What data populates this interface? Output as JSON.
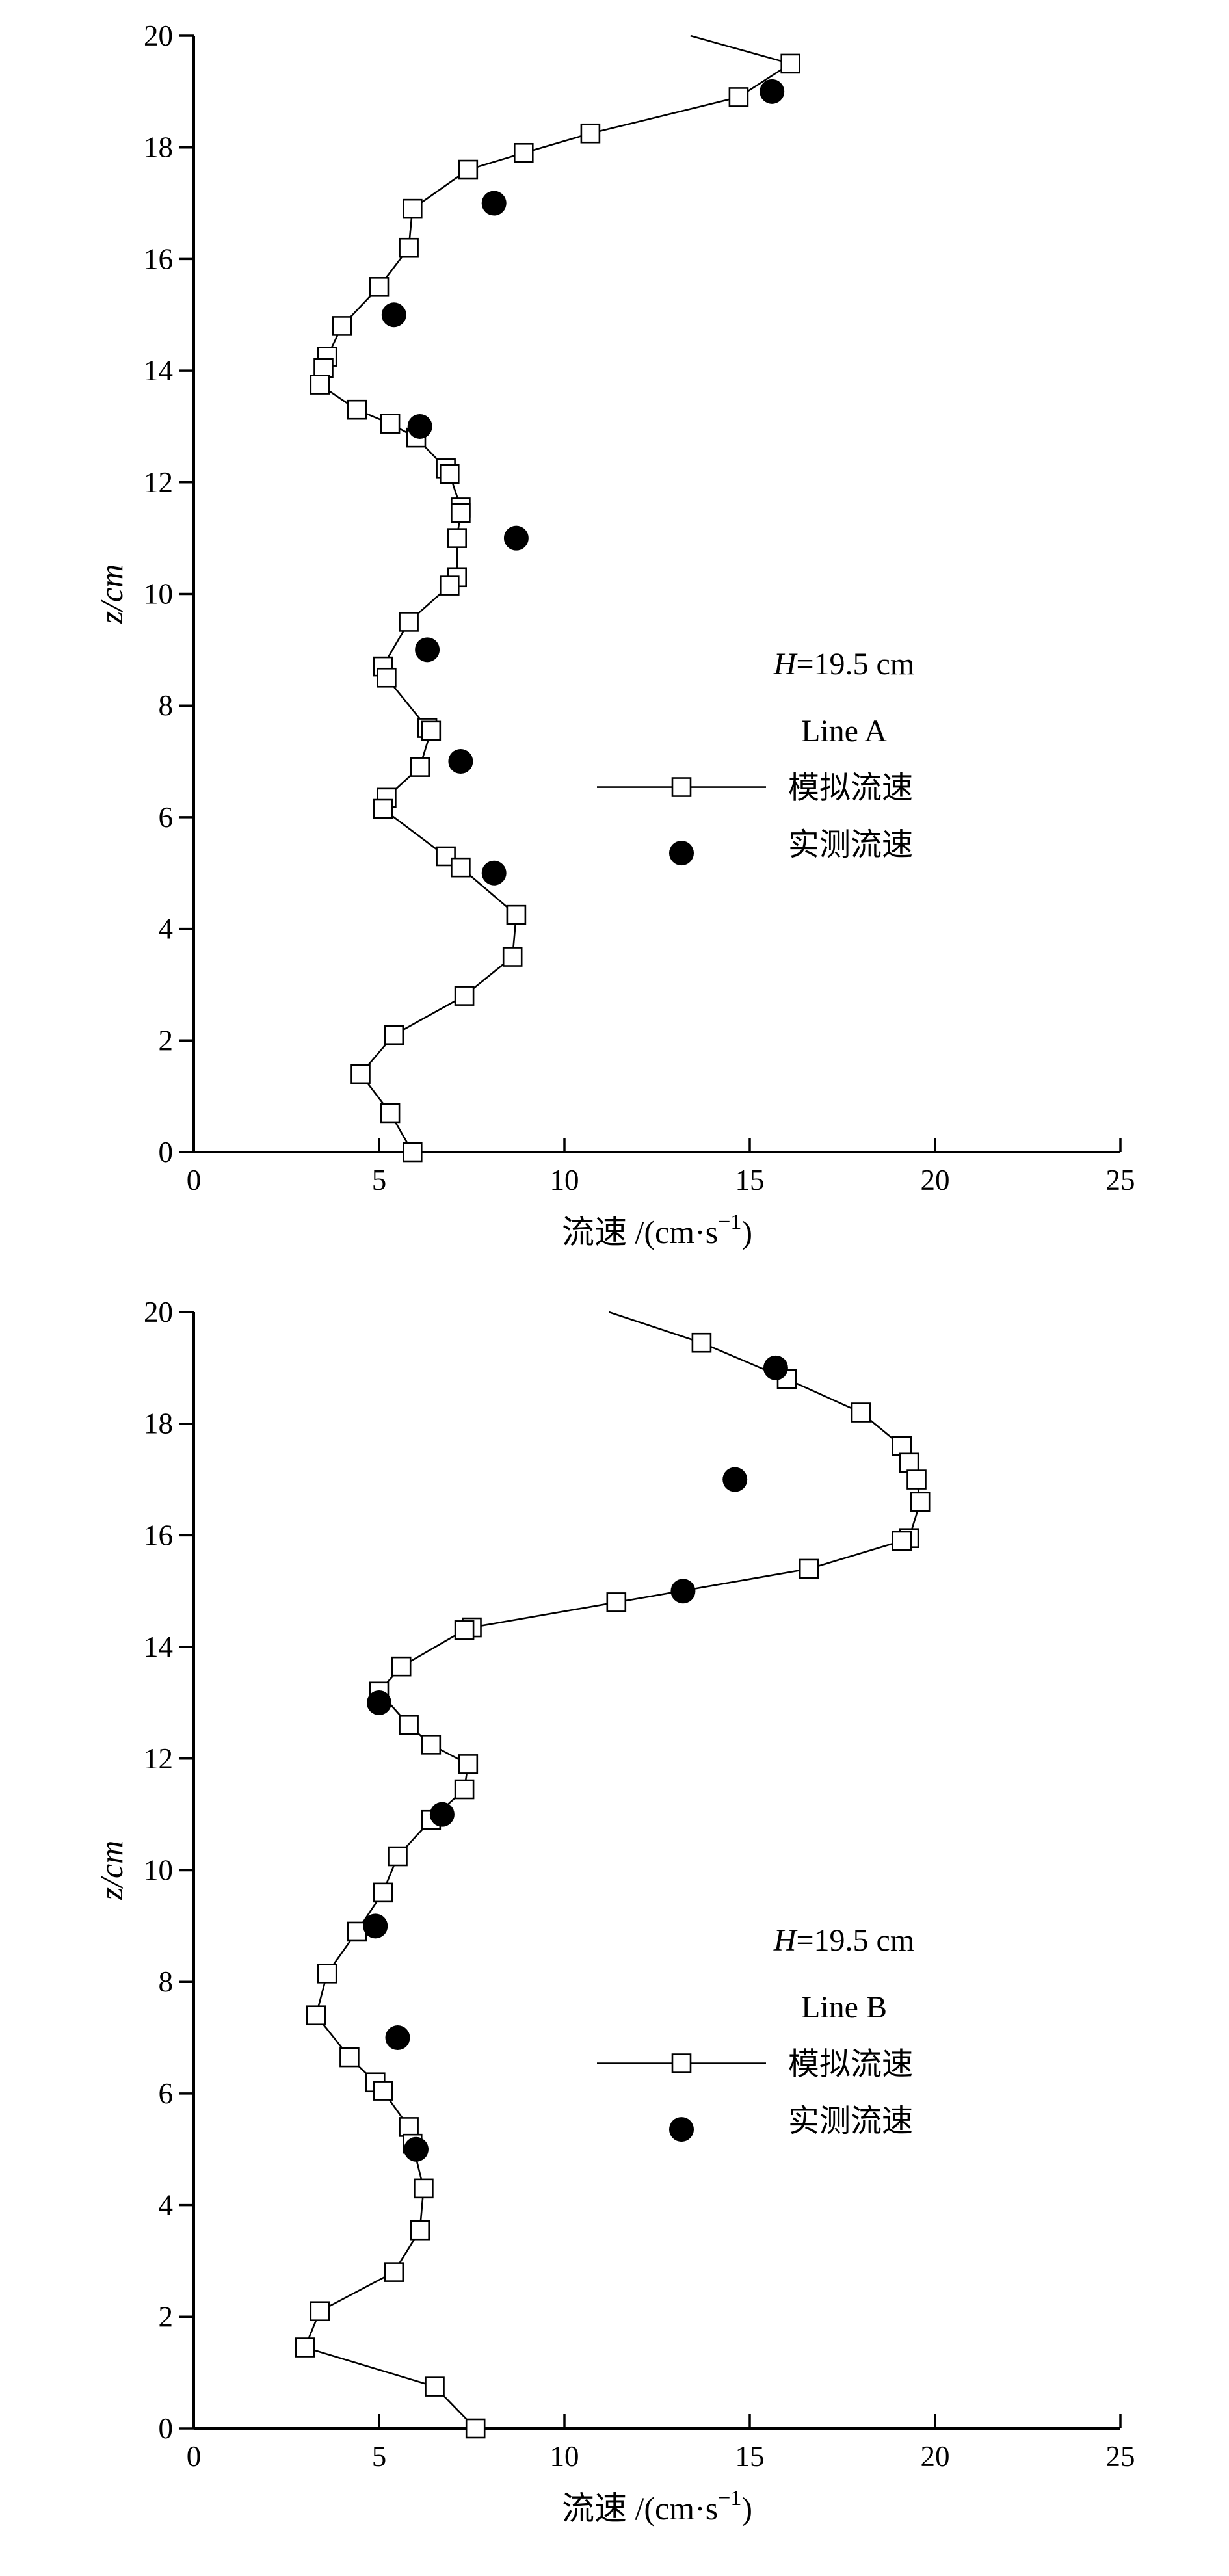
{
  "charts": [
    {
      "type": "line",
      "ylabel": "z/cm",
      "xlabel": "流速 /(cm·s",
      "xlabel_sup": "−1",
      "xlabel_close": ")",
      "xlim": [
        0,
        25
      ],
      "ylim": [
        0,
        20
      ],
      "xticks": [
        0,
        5,
        10,
        15,
        20,
        25
      ],
      "yticks": [
        0,
        2,
        4,
        6,
        8,
        10,
        12,
        14,
        16,
        18,
        20
      ],
      "grid": false,
      "legend_position": "right-middle",
      "annotation_var": "H",
      "annotation_value": "=19.5 cm",
      "annotation_line": "Line A",
      "series": [
        {
          "name": "模拟流速",
          "marker": "open-square",
          "line_start": {
            "x": 13.4,
            "y": 20.0
          },
          "points": [
            {
              "x": 16.1,
              "y": 19.5
            },
            {
              "x": 14.7,
              "y": 18.9
            },
            {
              "x": 10.7,
              "y": 18.25
            },
            {
              "x": 8.9,
              "y": 17.9
            },
            {
              "x": 7.4,
              "y": 17.6
            },
            {
              "x": 5.9,
              "y": 16.9
            },
            {
              "x": 5.8,
              "y": 16.2
            },
            {
              "x": 5.0,
              "y": 15.5
            },
            {
              "x": 4.0,
              "y": 14.8
            },
            {
              "x": 3.6,
              "y": 14.25
            },
            {
              "x": 3.5,
              "y": 14.05
            },
            {
              "x": 3.4,
              "y": 13.75
            },
            {
              "x": 4.4,
              "y": 13.3
            },
            {
              "x": 5.3,
              "y": 13.05
            },
            {
              "x": 6.0,
              "y": 12.8
            },
            {
              "x": 6.8,
              "y": 12.25
            },
            {
              "x": 6.9,
              "y": 12.15
            },
            {
              "x": 7.2,
              "y": 11.55
            },
            {
              "x": 7.2,
              "y": 11.45
            },
            {
              "x": 7.1,
              "y": 11.0
            },
            {
              "x": 7.1,
              "y": 10.3
            },
            {
              "x": 6.9,
              "y": 10.15
            },
            {
              "x": 5.8,
              "y": 9.5
            },
            {
              "x": 5.1,
              "y": 8.7
            },
            {
              "x": 5.2,
              "y": 8.5
            },
            {
              "x": 6.3,
              "y": 7.6
            },
            {
              "x": 6.4,
              "y": 7.55
            },
            {
              "x": 6.1,
              "y": 6.9
            },
            {
              "x": 5.2,
              "y": 6.35
            },
            {
              "x": 5.1,
              "y": 6.15
            },
            {
              "x": 6.8,
              "y": 5.3
            },
            {
              "x": 7.2,
              "y": 5.1
            },
            {
              "x": 8.7,
              "y": 4.25
            },
            {
              "x": 8.6,
              "y": 3.5
            },
            {
              "x": 7.3,
              "y": 2.8
            },
            {
              "x": 5.4,
              "y": 2.1
            },
            {
              "x": 4.5,
              "y": 1.4
            },
            {
              "x": 5.3,
              "y": 0.7
            },
            {
              "x": 5.9,
              "y": 0.0
            }
          ]
        },
        {
          "name": "实测流速",
          "marker": "filled-circle",
          "points": [
            {
              "x": 15.6,
              "y": 19.0
            },
            {
              "x": 8.1,
              "y": 17.0
            },
            {
              "x": 5.4,
              "y": 15.0
            },
            {
              "x": 6.1,
              "y": 13.0
            },
            {
              "x": 8.7,
              "y": 11.0
            },
            {
              "x": 6.3,
              "y": 9.0
            },
            {
              "x": 7.2,
              "y": 7.0
            },
            {
              "x": 8.1,
              "y": 5.0
            }
          ]
        }
      ]
    },
    {
      "type": "line",
      "ylabel": "z/cm",
      "xlabel": "流速 /(cm·s",
      "xlabel_sup": "−1",
      "xlabel_close": ")",
      "xlim": [
        0,
        25
      ],
      "ylim": [
        0,
        20
      ],
      "xticks": [
        0,
        5,
        10,
        15,
        20,
        25
      ],
      "yticks": [
        0,
        2,
        4,
        6,
        8,
        10,
        12,
        14,
        16,
        18,
        20
      ],
      "grid": false,
      "legend_position": "right-middle",
      "annotation_var": "H",
      "annotation_value": "=19.5 cm",
      "annotation_line": "Line B",
      "series": [
        {
          "name": "模拟流速",
          "marker": "open-square",
          "line_start": {
            "x": 11.2,
            "y": 20.0
          },
          "points": [
            {
              "x": 13.7,
              "y": 19.45
            },
            {
              "x": 16.0,
              "y": 18.8
            },
            {
              "x": 18.0,
              "y": 18.2
            },
            {
              "x": 19.1,
              "y": 17.6
            },
            {
              "x": 19.3,
              "y": 17.3
            },
            {
              "x": 19.5,
              "y": 17.0
            },
            {
              "x": 19.6,
              "y": 16.6
            },
            {
              "x": 19.3,
              "y": 15.95
            },
            {
              "x": 19.1,
              "y": 15.9
            },
            {
              "x": 16.6,
              "y": 15.4
            },
            {
              "x": 11.4,
              "y": 14.8
            },
            {
              "x": 7.5,
              "y": 14.35
            },
            {
              "x": 7.3,
              "y": 14.3
            },
            {
              "x": 5.6,
              "y": 13.65
            },
            {
              "x": 5.0,
              "y": 13.2
            },
            {
              "x": 5.8,
              "y": 12.6
            },
            {
              "x": 6.4,
              "y": 12.25
            },
            {
              "x": 7.4,
              "y": 11.9
            },
            {
              "x": 7.3,
              "y": 11.45
            },
            {
              "x": 6.4,
              "y": 10.9
            },
            {
              "x": 5.5,
              "y": 10.25
            },
            {
              "x": 5.1,
              "y": 9.6
            },
            {
              "x": 4.4,
              "y": 8.9
            },
            {
              "x": 3.6,
              "y": 8.15
            },
            {
              "x": 3.3,
              "y": 7.4
            },
            {
              "x": 4.2,
              "y": 6.65
            },
            {
              "x": 4.9,
              "y": 6.2
            },
            {
              "x": 5.1,
              "y": 6.05
            },
            {
              "x": 5.8,
              "y": 5.4
            },
            {
              "x": 5.9,
              "y": 5.1
            },
            {
              "x": 6.2,
              "y": 4.3
            },
            {
              "x": 6.1,
              "y": 3.55
            },
            {
              "x": 5.4,
              "y": 2.8
            },
            {
              "x": 3.4,
              "y": 2.1
            },
            {
              "x": 3.0,
              "y": 1.45
            },
            {
              "x": 6.5,
              "y": 0.75
            },
            {
              "x": 7.6,
              "y": 0.0
            }
          ]
        },
        {
          "name": "实测流速",
          "marker": "filled-circle",
          "points": [
            {
              "x": 15.7,
              "y": 19.0
            },
            {
              "x": 14.6,
              "y": 17.0
            },
            {
              "x": 13.2,
              "y": 15.0
            },
            {
              "x": 5.0,
              "y": 13.0
            },
            {
              "x": 6.7,
              "y": 11.0
            },
            {
              "x": 4.9,
              "y": 9.0
            },
            {
              "x": 5.5,
              "y": 7.0
            },
            {
              "x": 6.0,
              "y": 5.0
            }
          ]
        }
      ]
    }
  ]
}
